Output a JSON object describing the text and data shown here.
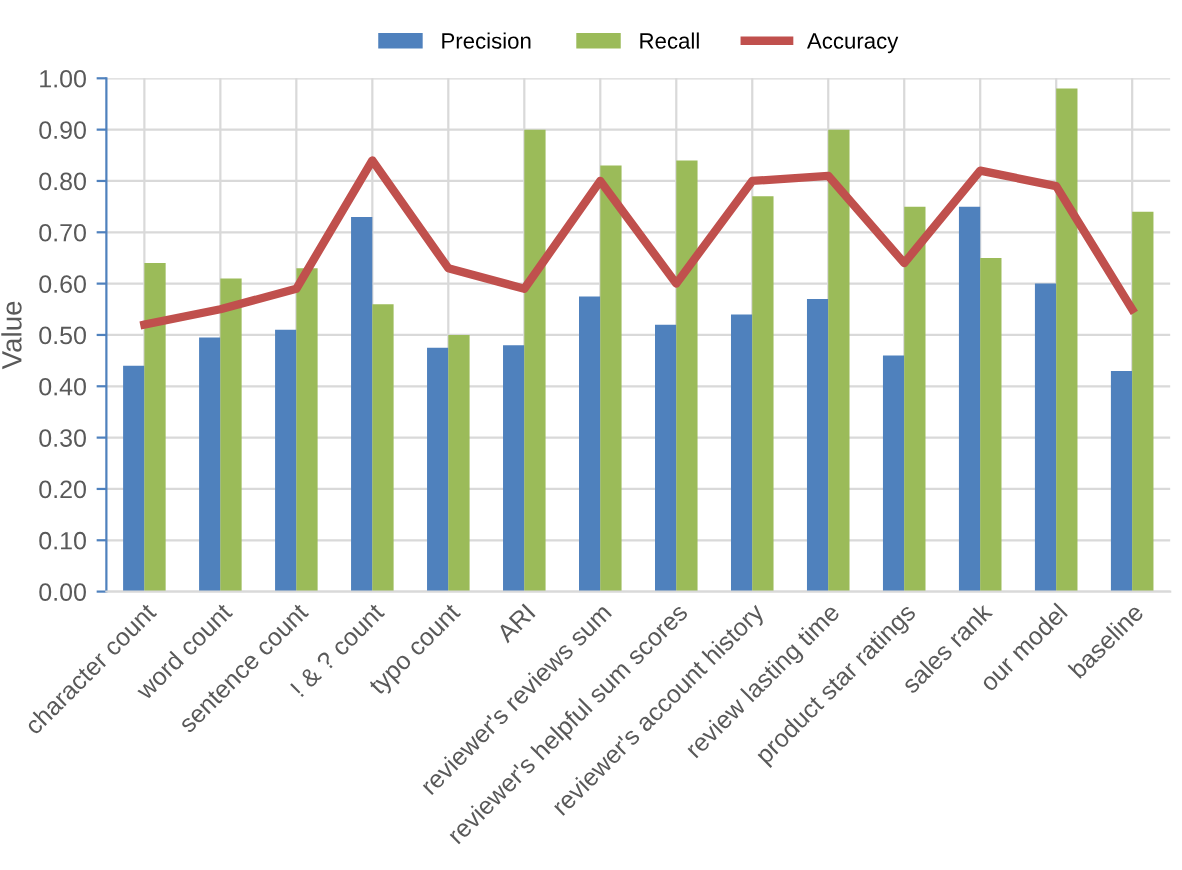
{
  "chart_data": {
    "type": "bar",
    "ylabel": "Value",
    "categories": [
      "character count",
      "word count",
      "sentence count",
      "! & ? count",
      "typo count",
      "ARI",
      "reviewer's reviews sum",
      "reviewer's helpful sum scores",
      "reviewer's account history",
      "review lasting time",
      "product star ratings",
      "sales rank",
      "our model",
      "baseline"
    ],
    "series": [
      {
        "name": "Precision",
        "color": "#4f81bd",
        "values": [
          0.44,
          0.495,
          0.51,
          0.73,
          0.475,
          0.48,
          0.575,
          0.52,
          0.54,
          0.57,
          0.46,
          0.75,
          0.6,
          0.43
        ]
      },
      {
        "name": "Recall",
        "color": "#9bbb59",
        "values": [
          0.64,
          0.61,
          0.63,
          0.56,
          0.5,
          0.9,
          0.83,
          0.84,
          0.77,
          0.9,
          0.75,
          0.65,
          0.98,
          0.74
        ]
      },
      {
        "name": "Accuracy",
        "type": "line",
        "color": "#c0504d",
        "values": [
          0.52,
          0.55,
          0.59,
          0.84,
          0.63,
          0.59,
          0.8,
          0.6,
          0.8,
          0.81,
          0.64,
          0.82,
          0.79,
          0.55
        ]
      }
    ],
    "ylim": [
      0,
      1
    ],
    "yticks": [
      {
        "value": 0,
        "label": "0.00"
      },
      {
        "value": 0.1,
        "label": "0.10"
      },
      {
        "value": 0.2,
        "label": "0.20"
      },
      {
        "value": 0.3,
        "label": "0.30"
      },
      {
        "value": 0.4,
        "label": "0.40"
      },
      {
        "value": 0.5,
        "label": "0.50"
      },
      {
        "value": 0.6,
        "label": "0.60"
      },
      {
        "value": 0.7,
        "label": "0.70"
      },
      {
        "value": 0.8,
        "label": "0.80"
      },
      {
        "value": 0.9,
        "label": "0.90"
      },
      {
        "value": 1,
        "label": "1.00"
      }
    ],
    "grid": true,
    "legend": "top"
  }
}
